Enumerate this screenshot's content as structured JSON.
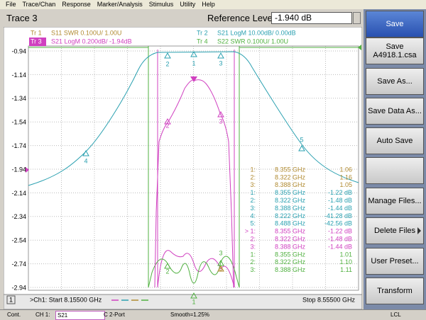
{
  "menu": [
    "File",
    "Trace/Chan",
    "Response",
    "Marker/Analysis",
    "Stimulus",
    "Utility",
    "Help"
  ],
  "title_bar": {
    "active_trace": "Trace 3",
    "ref_label": "Reference Level",
    "ref_value": "-1.940 dB"
  },
  "traces": [
    {
      "id": "Tr 1",
      "desc": "S11 SWR 0.100U/ 1.00U",
      "color": "#b08a30"
    },
    {
      "id": "Tr 3",
      "desc": "S21 LogM 0.200dB/ -1.94dB",
      "color": "#d040c0"
    },
    {
      "id": "Tr 2",
      "desc": "S21 LogM 10.00dB/ 0.00dB",
      "color": "#2aa0b0"
    },
    {
      "id": "Tr 4",
      "desc": "S22 SWR 0.100U/ 1.00U",
      "color": "#50b040"
    }
  ],
  "y_labels": [
    "-0.94",
    "-1.14",
    "-1.34",
    "-1.54",
    "-1.74",
    "-1.94",
    "-2.14",
    "-2.34",
    "-2.54",
    "-2.74",
    "-2.94"
  ],
  "marker_table": [
    {
      "id": "1:",
      "freq": "8.355 GHz",
      "value": "1.06",
      "color": "#b08a30"
    },
    {
      "id": "2:",
      "freq": "8.322 GHz",
      "value": "1.16",
      "color": "#b08a30"
    },
    {
      "id": "3:",
      "freq": "8.388 GHz",
      "value": "1.05",
      "color": "#b08a30"
    },
    {
      "id": "1:",
      "freq": "8.355 GHz",
      "value": "-1.22 dB",
      "color": "#2aa0b0"
    },
    {
      "id": "2:",
      "freq": "8.322 GHz",
      "value": "-1.48 dB",
      "color": "#2aa0b0"
    },
    {
      "id": "3:",
      "freq": "8.388 GHz",
      "value": "-1.44 dB",
      "color": "#2aa0b0"
    },
    {
      "id": "4:",
      "freq": "8.222 GHz",
      "value": "-41.28 dB",
      "color": "#2aa0b0"
    },
    {
      "id": "5:",
      "freq": "8.488 GHz",
      "value": "-42.56 dB",
      "color": "#2aa0b0"
    },
    {
      "id": "> 1:",
      "freq": "8.355 GHz",
      "value": "-1.22 dB",
      "color": "#d040c0"
    },
    {
      "id": "2:",
      "freq": "8.322 GHz",
      "value": "-1.48 dB",
      "color": "#d040c0"
    },
    {
      "id": "3:",
      "freq": "8.388 GHz",
      "value": "-1.44 dB",
      "color": "#d040c0"
    },
    {
      "id": "1:",
      "freq": "8.355 GHz",
      "value": "1.01",
      "color": "#50b040"
    },
    {
      "id": "2:",
      "freq": "8.322 GHz",
      "value": "1.10",
      "color": "#50b040"
    },
    {
      "id": "3:",
      "freq": "8.388 GHz",
      "value": "1.11",
      "color": "#50b040"
    }
  ],
  "markers": [
    {
      "label": "1",
      "color": "#2aa0b0"
    },
    {
      "label": "2",
      "color": "#2aa0b0"
    },
    {
      "label": "3",
      "color": "#2aa0b0"
    },
    {
      "label": "4",
      "color": "#2aa0b0"
    },
    {
      "label": "5",
      "color": "#2aa0b0"
    },
    {
      "label": "2",
      "color": "#d040c0"
    },
    {
      "label": "3",
      "color": "#d040c0"
    },
    {
      "label": "1",
      "color": "#50b040"
    },
    {
      "label": "2",
      "color": "#50b040"
    },
    {
      "label": "3",
      "color": "#50b040"
    },
    {
      "label": "3",
      "color": "#b08a30"
    }
  ],
  "footer": {
    "channel": "1",
    "start": ">Ch1: Start 8.15500 GHz",
    "stop": "Stop 8.55500 GHz"
  },
  "softkeys": [
    [
      "Save"
    ],
    [
      "Save",
      "A4918.1.csa"
    ],
    [
      "Save As..."
    ],
    [
      "Save Data As..."
    ],
    [
      "Auto Save"
    ],
    [],
    [
      "Manage Files..."
    ],
    [
      "Delete Files"
    ],
    [
      "User Preset..."
    ],
    [
      "Transform"
    ]
  ],
  "status": {
    "mode": "Cont.",
    "channel": "CH 1:",
    "param": "S21",
    "cal": "C 2-Port",
    "smooth": "Smooth=1.25%",
    "remote": "LCL"
  }
}
